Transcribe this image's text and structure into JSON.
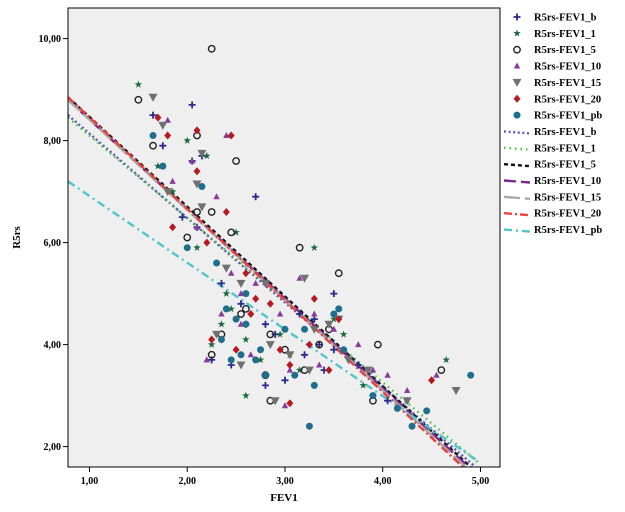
{
  "chart_data": {
    "type": "scatter",
    "xlabel": "FEV1",
    "ylabel": "R5rs",
    "xlim": [
      0.78,
      5.2
    ],
    "ylim": [
      1.6,
      10.6
    ],
    "x_ticks": [
      1,
      2,
      3,
      4,
      5
    ],
    "y_ticks": [
      2,
      4,
      6,
      8,
      10
    ],
    "x_tick_labels": [
      "1,00",
      "2,00",
      "3,00",
      "4,00",
      "5,00"
    ],
    "y_tick_labels": [
      "2,00",
      "4,00",
      "6,00",
      "8,00",
      "10,00"
    ],
    "grid": false,
    "legend_position": "right",
    "background_color": "#efefef",
    "series": [
      {
        "name": "R5rs-FEV1_b",
        "marker": "plus",
        "color": "#2a2a8c",
        "points": [
          [
            1.65,
            8.5
          ],
          [
            1.75,
            7.9
          ],
          [
            2.05,
            8.7
          ],
          [
            2.15,
            7.7
          ],
          [
            2.7,
            6.9
          ],
          [
            1.95,
            6.5
          ],
          [
            2.05,
            7.6
          ],
          [
            2.35,
            5.2
          ],
          [
            2.55,
            4.8
          ],
          [
            2.8,
            4.4
          ],
          [
            3.15,
            4.6
          ],
          [
            3.35,
            4.0
          ],
          [
            3.5,
            5.0
          ],
          [
            2.25,
            3.7
          ],
          [
            2.45,
            3.6
          ],
          [
            2.8,
            3.2
          ],
          [
            3.0,
            3.3
          ],
          [
            3.2,
            3.8
          ],
          [
            3.5,
            3.9
          ],
          [
            3.75,
            3.6
          ],
          [
            4.05,
            2.9
          ],
          [
            2.6,
            4.4
          ],
          [
            2.9,
            4.2
          ],
          [
            3.3,
            4.5
          ],
          [
            2.1,
            6.3
          ],
          [
            3.4,
            3.5
          ]
        ]
      },
      {
        "name": "R5rs-FEV1_1",
        "marker": "star",
        "color": "#1e6a3e",
        "points": [
          [
            1.5,
            9.1
          ],
          [
            1.7,
            7.5
          ],
          [
            2.0,
            8.0
          ],
          [
            2.2,
            7.7
          ],
          [
            2.5,
            6.2
          ],
          [
            2.1,
            5.9
          ],
          [
            2.4,
            5.0
          ],
          [
            2.35,
            4.4
          ],
          [
            2.6,
            4.1
          ],
          [
            2.75,
            3.7
          ],
          [
            3.05,
            3.8
          ],
          [
            3.3,
            5.9
          ],
          [
            3.5,
            4.5
          ],
          [
            3.6,
            4.2
          ],
          [
            3.8,
            3.2
          ],
          [
            4.25,
            2.9
          ],
          [
            4.65,
            3.7
          ],
          [
            2.6,
            3.0
          ],
          [
            2.95,
            4.2
          ],
          [
            3.15,
            3.5
          ],
          [
            2.25,
            4.0
          ],
          [
            1.85,
            7.0
          ],
          [
            2.45,
            4.7
          ]
        ]
      },
      {
        "name": "R5rs-FEV1_5",
        "marker": "circle",
        "color": "#222222",
        "points": [
          [
            2.25,
            9.8
          ],
          [
            1.5,
            8.8
          ],
          [
            1.65,
            7.9
          ],
          [
            2.1,
            8.1
          ],
          [
            2.5,
            7.6
          ],
          [
            2.25,
            6.6
          ],
          [
            2.1,
            6.6
          ],
          [
            2.0,
            6.1
          ],
          [
            2.45,
            6.2
          ],
          [
            3.15,
            5.9
          ],
          [
            2.6,
            4.7
          ],
          [
            2.85,
            4.2
          ],
          [
            3.55,
            5.4
          ],
          [
            3.45,
            4.3
          ],
          [
            2.35,
            4.2
          ],
          [
            2.25,
            3.8
          ],
          [
            2.8,
            3.4
          ],
          [
            3.0,
            3.9
          ],
          [
            2.85,
            2.9
          ],
          [
            3.2,
            3.5
          ],
          [
            3.95,
            4.0
          ],
          [
            4.6,
            3.5
          ],
          [
            2.55,
            4.6
          ],
          [
            3.35,
            4.0
          ],
          [
            3.9,
            2.9
          ]
        ]
      },
      {
        "name": "R5rs-FEV1_10",
        "marker": "triangle",
        "color": "#8a3a9a",
        "points": [
          [
            1.8,
            8.4
          ],
          [
            2.05,
            7.6
          ],
          [
            2.4,
            8.1
          ],
          [
            2.3,
            6.9
          ],
          [
            1.85,
            7.2
          ],
          [
            2.1,
            6.3
          ],
          [
            2.7,
            5.2
          ],
          [
            2.45,
            5.4
          ],
          [
            3.15,
            5.3
          ],
          [
            2.35,
            4.6
          ],
          [
            2.55,
            4.4
          ],
          [
            2.95,
            4.6
          ],
          [
            3.3,
            4.6
          ],
          [
            3.5,
            4.3
          ],
          [
            2.65,
            3.8
          ],
          [
            3.05,
            3.5
          ],
          [
            3.35,
            3.6
          ],
          [
            3.9,
            3.5
          ],
          [
            4.05,
            3.4
          ],
          [
            4.25,
            3.1
          ],
          [
            2.2,
            3.7
          ],
          [
            2.55,
            5.0
          ],
          [
            3.0,
            2.8
          ],
          [
            3.75,
            4.0
          ],
          [
            4.55,
            3.4
          ]
        ]
      },
      {
        "name": "R5rs-FEV1_15",
        "marker": "down-triangle",
        "color": "#707070",
        "points": [
          [
            1.65,
            8.85
          ],
          [
            1.75,
            8.3
          ],
          [
            2.15,
            7.75
          ],
          [
            1.8,
            7.0
          ],
          [
            2.1,
            7.15
          ],
          [
            2.4,
            5.5
          ],
          [
            2.55,
            5.2
          ],
          [
            2.8,
            5.2
          ],
          [
            3.2,
            5.3
          ],
          [
            3.45,
            4.4
          ],
          [
            3.55,
            4.5
          ],
          [
            2.3,
            4.2
          ],
          [
            2.55,
            3.6
          ],
          [
            2.85,
            4.0
          ],
          [
            3.05,
            3.8
          ],
          [
            3.25,
            3.5
          ],
          [
            3.65,
            3.7
          ],
          [
            3.85,
            3.5
          ],
          [
            4.25,
            2.9
          ],
          [
            4.75,
            3.1
          ],
          [
            2.9,
            2.9
          ],
          [
            2.15,
            6.7
          ],
          [
            3.3,
            4.3
          ]
        ]
      },
      {
        "name": "R5rs-FEV1_20",
        "marker": "diamond",
        "color": "#b51a22",
        "points": [
          [
            1.7,
            8.45
          ],
          [
            1.8,
            8.1
          ],
          [
            2.1,
            8.2
          ],
          [
            2.45,
            8.1
          ],
          [
            2.1,
            7.4
          ],
          [
            1.85,
            6.3
          ],
          [
            2.2,
            6.0
          ],
          [
            2.4,
            6.6
          ],
          [
            2.6,
            5.4
          ],
          [
            2.7,
            4.9
          ],
          [
            3.3,
            4.9
          ],
          [
            3.55,
            4.5
          ],
          [
            2.35,
            4.1
          ],
          [
            2.25,
            4.1
          ],
          [
            2.5,
            3.9
          ],
          [
            2.85,
            4.8
          ],
          [
            3.05,
            3.6
          ],
          [
            3.25,
            4.0
          ],
          [
            3.45,
            3.5
          ],
          [
            3.05,
            2.85
          ],
          [
            4.5,
            3.3
          ],
          [
            2.65,
            4.6
          ],
          [
            2.95,
            3.9
          ]
        ]
      },
      {
        "name": "R5rs-FEV1_pb",
        "marker": "filled-circle",
        "color": "#1f6e8c",
        "points": [
          [
            1.65,
            8.1
          ],
          [
            1.75,
            7.5
          ],
          [
            2.15,
            7.1
          ],
          [
            2.0,
            5.9
          ],
          [
            2.4,
            4.7
          ],
          [
            2.5,
            4.5
          ],
          [
            2.6,
            4.4
          ],
          [
            2.35,
            4.1
          ],
          [
            2.55,
            3.8
          ],
          [
            2.75,
            3.9
          ],
          [
            3.0,
            4.3
          ],
          [
            3.2,
            4.3
          ],
          [
            3.5,
            4.6
          ],
          [
            3.6,
            3.9
          ],
          [
            2.45,
            3.7
          ],
          [
            2.8,
            3.4
          ],
          [
            3.1,
            3.4
          ],
          [
            3.3,
            3.2
          ],
          [
            3.25,
            2.4
          ],
          [
            3.9,
            3.0
          ],
          [
            4.15,
            2.75
          ],
          [
            4.45,
            2.7
          ],
          [
            4.9,
            3.4
          ],
          [
            4.3,
            2.4
          ],
          [
            2.6,
            5.0
          ],
          [
            3.55,
            4.7
          ],
          [
            2.3,
            5.6
          ],
          [
            2.7,
            3.7
          ]
        ]
      }
    ],
    "fit_lines": [
      {
        "name": "R5rs-FEV1_b",
        "color": "#5a5ab4",
        "dash": "2,2.6",
        "x": [
          0.78,
          4.95
        ],
        "y": [
          8.5,
          1.6
        ]
      },
      {
        "name": "R5rs-FEV1_1",
        "color": "#4dbb4a",
        "dash": "1.5,4",
        "x": [
          0.78,
          5.0
        ],
        "y": [
          8.45,
          1.65
        ]
      },
      {
        "name": "R5rs-FEV1_5",
        "color": "#111111",
        "dash": "4,3",
        "x": [
          0.78,
          4.9
        ],
        "y": [
          8.85,
          1.6
        ]
      },
      {
        "name": "R5rs-FEV1_10",
        "color": "#7a2a8a",
        "dash": "12,5",
        "x": [
          0.78,
          4.88
        ],
        "y": [
          8.8,
          1.6
        ]
      },
      {
        "name": "R5rs-FEV1_15",
        "color": "#a8a8a8",
        "dash": "16,5",
        "x": [
          0.78,
          4.85
        ],
        "y": [
          8.8,
          1.6
        ]
      },
      {
        "name": "R5rs-FEV1_20",
        "color": "#e8433c",
        "dash": "8,3,2,3",
        "x": [
          0.78,
          4.82
        ],
        "y": [
          8.85,
          1.6
        ]
      },
      {
        "name": "R5rs-FEV1_pb",
        "color": "#52c4cc",
        "dash": "8,4,2,4",
        "x": [
          0.78,
          4.95
        ],
        "y": [
          7.2,
          1.75
        ]
      }
    ]
  }
}
